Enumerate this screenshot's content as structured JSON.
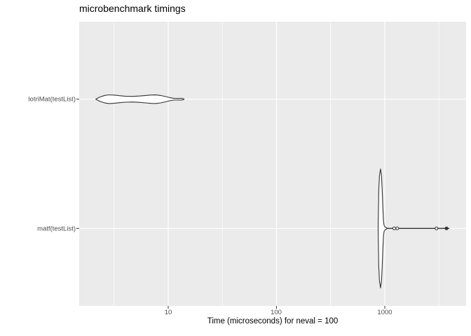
{
  "chart_data": {
    "type": "violin",
    "orientation": "horizontal",
    "title": "microbenchmark timings",
    "xlabel": "Time (microseconds) for neval = 100",
    "x_scale": "log10",
    "x_tick_labels": [
      "10",
      "100",
      "1000"
    ],
    "x_tick_values": [
      10,
      100,
      1000
    ],
    "x_minor_grid_values": [
      3.162,
      31.62,
      316.2,
      3162
    ],
    "x_range_us": [
      1.5,
      5500
    ],
    "categories": [
      "lotriMat(testList)",
      "matf(testList)"
    ],
    "grid": true,
    "legend": "none",
    "panel_bg": "#EBEBEB",
    "grid_color": "#FFFFFF",
    "violin_color": "#333333",
    "violin_fill": "#FFFFFF",
    "tick_label_color": "#4D4D4D",
    "series": [
      {
        "name": "lotriMat(testList)",
        "summary": {
          "min_us": 2.1,
          "max_us": 14,
          "density_peaks_us": [
            2.8,
            7.6
          ],
          "shape": "bimodal"
        },
        "profile_us_halfwidth": [
          [
            2.15,
            0.3
          ],
          [
            2.35,
            3.2
          ],
          [
            2.6,
            5.4
          ],
          [
            2.85,
            6.2
          ],
          [
            3.15,
            5.9
          ],
          [
            3.55,
            5.0
          ],
          [
            4.0,
            4.3
          ],
          [
            4.7,
            4.0
          ],
          [
            5.4,
            4.5
          ],
          [
            6.2,
            5.3
          ],
          [
            7.0,
            6.0
          ],
          [
            7.7,
            6.1
          ],
          [
            8.5,
            5.3
          ],
          [
            9.4,
            3.8
          ],
          [
            10.3,
            2.3
          ],
          [
            11.2,
            1.3
          ],
          [
            13.5,
            1.1
          ],
          [
            14.0,
            0.2
          ]
        ],
        "tail_line_us": null,
        "points_us": []
      },
      {
        "name": "matf(testList)",
        "summary": {
          "min_us": 868,
          "max_us": 3940,
          "mode_us": 913,
          "shape": "narrow peak with long right tail"
        },
        "profile_us_halfwidth": [
          [
            868,
            0.3
          ],
          [
            880,
            55
          ],
          [
            893,
            75
          ],
          [
            913,
            85
          ],
          [
            933,
            75
          ],
          [
            946,
            55
          ],
          [
            960,
            28
          ],
          [
            973,
            10
          ],
          [
            986,
            4
          ],
          [
            1006,
            2
          ],
          [
            1050,
            0.3
          ]
        ],
        "tail_line_us": [
          990,
          3940
        ],
        "points_us": [
          {
            "v": 1222,
            "style": "open"
          },
          {
            "v": 1305,
            "style": "open"
          },
          {
            "v": 3000,
            "style": "open"
          },
          {
            "v": 3715,
            "style": "filled"
          }
        ]
      }
    ]
  }
}
